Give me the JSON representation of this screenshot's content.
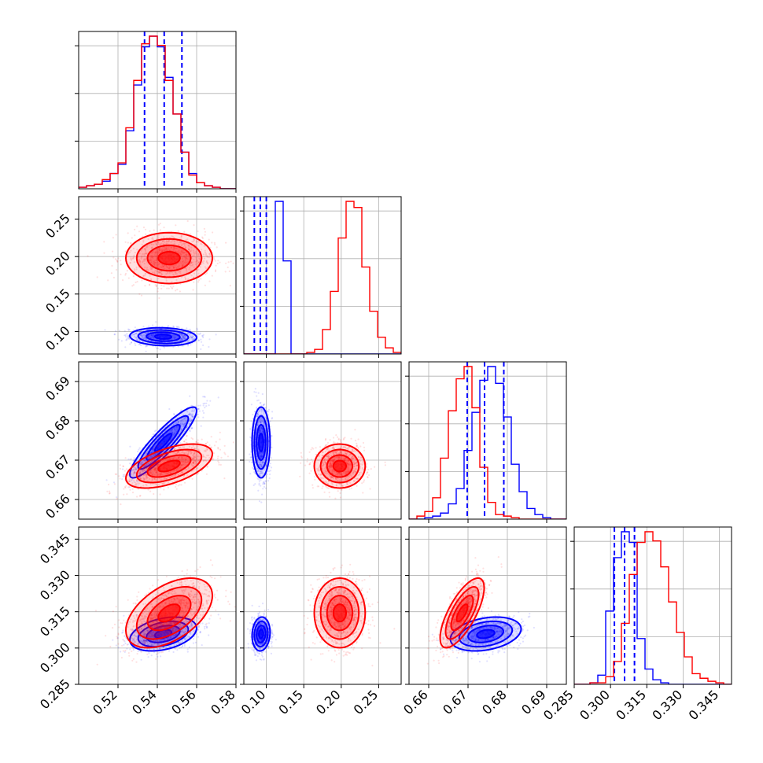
{
  "chart_data": {
    "type": "corner",
    "title": "",
    "parameters": [
      {
        "ticks": [
          "0.52",
          "0.54",
          "0.56",
          "0.58"
        ],
        "lim": [
          0.5,
          0.58
        ]
      },
      {
        "ticks": [
          "0.10",
          "0.15",
          "0.20",
          "0.25"
        ],
        "lim": [
          0.07,
          0.28
        ]
      },
      {
        "ticks": [
          "0.66",
          "0.67",
          "0.68",
          "0.69"
        ],
        "lim": [
          0.655,
          0.695
        ]
      },
      {
        "ticks": [
          "0.285",
          "0.300",
          "0.315",
          "0.330",
          "0.345"
        ],
        "lim": [
          0.285,
          0.35
        ]
      }
    ],
    "grid": true,
    "series": [
      {
        "color": "#0000ff",
        "quantiles": [
          [
            0.5335,
            0.5435,
            0.5525
          ],
          [
            0.084,
            0.092,
            0.1
          ],
          [
            0.6698,
            0.6742,
            0.6791
          ],
          [
            0.3016,
            0.3058,
            0.3099
          ]
        ],
        "histograms": [
          {
            "edges_lim": [
              0.5,
              0.58
            ],
            "counts": [
              0.01,
              0.02,
              0.03,
              0.05,
              0.1,
              0.16,
              0.38,
              0.68,
              0.93,
              1.0,
              0.93,
              0.73,
              0.49,
              0.24,
              0.1,
              0.04,
              0.02,
              0.01,
              0.0,
              0.0
            ]
          },
          {
            "edges_lim": [
              0.07,
              0.28
            ],
            "counts": [
              0.0,
              0.0,
              0.0,
              0.0,
              1.0,
              0.61,
              0.0,
              0.0,
              0.0,
              0.0,
              0.0,
              0.0,
              0.0,
              0.0,
              0.0,
              0.0,
              0.0,
              0.0,
              0.0,
              0.0
            ]
          },
          {
            "edges_lim": [
              0.655,
              0.695
            ],
            "counts": [
              0.0,
              0.0,
              0.01,
              0.02,
              0.04,
              0.1,
              0.2,
              0.45,
              0.7,
              0.91,
              1.0,
              0.89,
              0.67,
              0.36,
              0.18,
              0.07,
              0.03,
              0.01,
              0.0,
              0.0
            ]
          },
          {
            "edges_lim": [
              0.285,
              0.35
            ],
            "counts": [
              0.0,
              0.0,
              0.01,
              0.06,
              0.48,
              0.83,
              1.0,
              0.93,
              0.3,
              0.1,
              0.03,
              0.01,
              0.0,
              0.0,
              0.0,
              0.0,
              0.0,
              0.0,
              0.0,
              0.0
            ]
          }
        ],
        "means": [
          0.543,
          0.093,
          0.6745,
          0.3058
        ],
        "sigmas": [
          0.0085,
          0.006,
          0.0045,
          0.0035
        ],
        "correlations": {
          "1-0": -0.1,
          "2-0": 0.9,
          "2-1": 0.0,
          "3-0": 0.35,
          "3-1": 0.1,
          "3-2": 0.3
        }
      },
      {
        "color": "#ff0000",
        "quantiles": null,
        "histograms": [
          {
            "edges_lim": [
              0.5,
              0.58
            ],
            "counts": [
              0.01,
              0.02,
              0.03,
              0.06,
              0.1,
              0.17,
              0.4,
              0.71,
              0.95,
              1.0,
              0.94,
              0.71,
              0.49,
              0.24,
              0.09,
              0.04,
              0.02,
              0.01,
              0.0,
              0.0
            ]
          },
          {
            "edges_lim": [
              0.07,
              0.28
            ],
            "counts": [
              0.0,
              0.0,
              0.0,
              0.0,
              0.0,
              0.0,
              0.0,
              0.0,
              0.01,
              0.03,
              0.16,
              0.41,
              0.76,
              1.0,
              0.96,
              0.57,
              0.28,
              0.11,
              0.04,
              0.01
            ]
          },
          {
            "edges_lim": [
              0.655,
              0.695
            ],
            "counts": [
              0.0,
              0.02,
              0.05,
              0.14,
              0.4,
              0.71,
              0.92,
              1.0,
              0.73,
              0.34,
              0.11,
              0.03,
              0.02,
              0.01,
              0.0,
              0.0,
              0.0,
              0.0,
              0.0,
              0.0
            ]
          },
          {
            "edges_lim": [
              0.285,
              0.35
            ],
            "counts": [
              0.0,
              0.0,
              0.01,
              0.01,
              0.05,
              0.15,
              0.4,
              0.72,
              0.93,
              1.0,
              0.94,
              0.77,
              0.54,
              0.34,
              0.18,
              0.07,
              0.04,
              0.02,
              0.01,
              0.0
            ]
          }
        ],
        "means": [
          0.546,
          0.198,
          0.6685,
          0.3145
        ],
        "sigmas": [
          0.011,
          0.017,
          0.0028,
          0.0072
        ],
        "correlations": {
          "1-0": 0.0,
          "2-0": 0.55,
          "2-1": 0.0,
          "3-0": 0.5,
          "3-1": 0.0,
          "3-2": 0.72
        }
      }
    ]
  }
}
